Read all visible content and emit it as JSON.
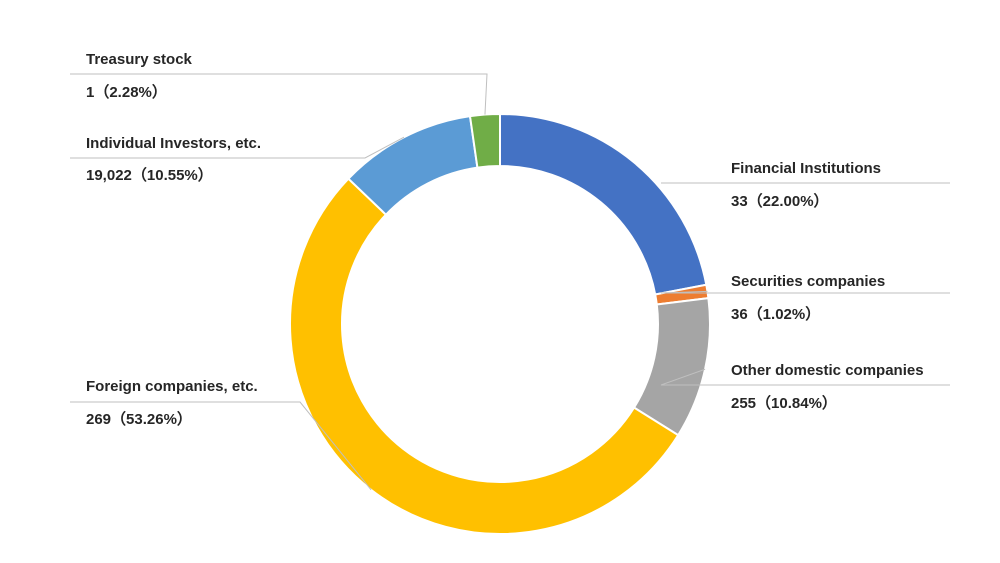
{
  "chart_data": {
    "type": "pie",
    "variant": "donut",
    "title": "",
    "legend": "none",
    "slices": [
      {
        "name": "Financial Institutions",
        "label": "33（22.00%）",
        "value": 22.0,
        "color": "#4472C4"
      },
      {
        "name": "Securities companies",
        "label": "36（1.02%）",
        "value": 1.02,
        "color": "#ED7D31"
      },
      {
        "name": "Other domestic companies",
        "label": "255（10.84%）",
        "value": 10.84,
        "color": "#A5A5A5"
      },
      {
        "name": "Foreign companies, etc.",
        "label": "269（53.26%）",
        "value": 53.26,
        "color": "#FFC000"
      },
      {
        "name": "Individual Investors, etc.",
        "label": "19,022（10.55%）",
        "value": 10.55,
        "color": "#5B9BD5"
      },
      {
        "name": "Treasury stock",
        "label": "1（2.28%）",
        "value": 2.28,
        "color": "#70AD47"
      }
    ]
  }
}
